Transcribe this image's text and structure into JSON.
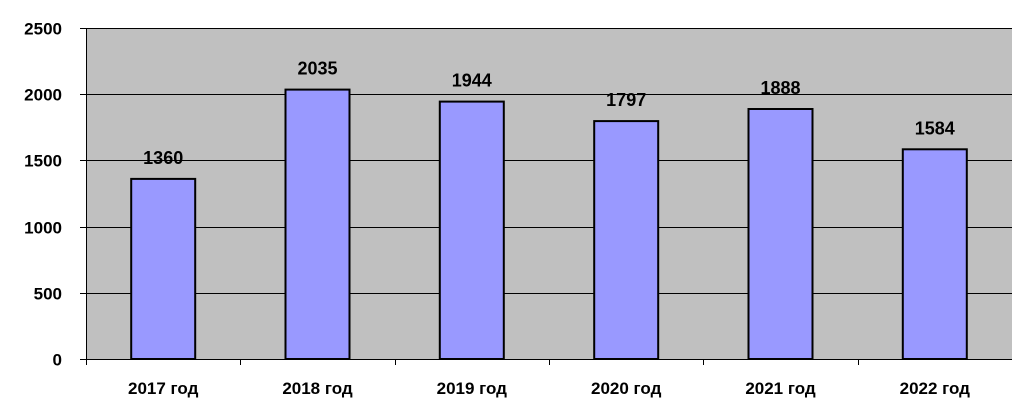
{
  "chart_data": {
    "type": "bar",
    "title": "",
    "xlabel": "",
    "ylabel": "",
    "categories": [
      "2017 год",
      "2018 год",
      "2019 год",
      "2020 год",
      "2021 год",
      "2022 год"
    ],
    "values": [
      1360,
      2035,
      1944,
      1797,
      1888,
      1584
    ],
    "data_labels": [
      "1360",
      "2035",
      "1944",
      "1797",
      "1888",
      "1584"
    ],
    "ylim": [
      0,
      2500
    ],
    "yticks": [
      0,
      500,
      1000,
      1500,
      2000,
      2500
    ],
    "ytick_labels": [
      "0",
      "500",
      "1000",
      "1500",
      "2000",
      "2500"
    ],
    "grid": true,
    "legend": "none",
    "colors": {
      "plot_background": "#c0c0c0",
      "bar_fill": "#9999ff",
      "bar_stroke": "#000000",
      "gridline": "#000000",
      "text": "#000000"
    }
  }
}
